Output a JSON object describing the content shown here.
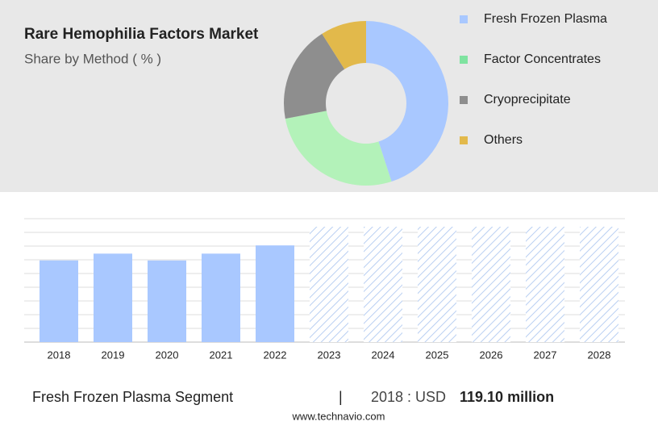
{
  "chart_data": [
    {
      "type": "donut",
      "title": "Rare Hemophilia Factors Market",
      "subtitle": "Share by Method ( % )",
      "categories": [
        "Fresh Frozen Plasma",
        "Factor Concentrates",
        "Cryoprecipitate",
        "Others"
      ],
      "values": [
        45,
        27,
        19,
        9
      ],
      "colors": [
        "#a9c8ff",
        "#b3f2b9",
        "#8e8e8e",
        "#e2b94b"
      ],
      "legend_colors": [
        "#a9c8ff",
        "#7fe3a0",
        "#8e8e8e",
        "#e2b94b"
      ]
    },
    {
      "type": "bar",
      "categories": [
        "2018",
        "2019",
        "2020",
        "2021",
        "2022",
        "2023",
        "2024",
        "2025",
        "2026",
        "2027",
        "2028"
      ],
      "values": [
        119.1,
        129,
        119,
        129,
        141,
        null,
        null,
        null,
        null,
        null,
        null
      ],
      "color": "#a9c8ff",
      "ylim": [
        0,
        180
      ],
      "yticks": [
        0,
        20,
        40,
        60,
        80,
        100,
        120,
        140,
        160,
        180
      ],
      "grid": true
    }
  ],
  "footer": {
    "segment": "Fresh Frozen Plasma Segment",
    "separator": "|",
    "year_label": "2018 : USD",
    "value": "119.10 million",
    "website": "www.technavio.com"
  }
}
